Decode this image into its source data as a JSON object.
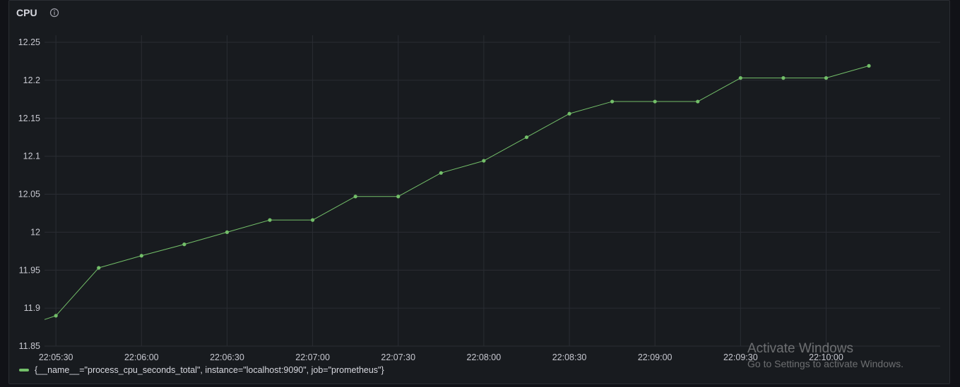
{
  "panel": {
    "title": "CPU",
    "info_icon": "info-circle-icon"
  },
  "colors": {
    "background": "#111217",
    "panel": "#181b1f",
    "series": "#73bf69",
    "grid": "#2a2d33"
  },
  "legend": {
    "label": "{__name__=\"process_cpu_seconds_total\", instance=\"localhost:9090\", job=\"prometheus\"}"
  },
  "watermark": {
    "title": "Activate Windows",
    "subtitle": "Go to Settings to activate Windows."
  },
  "chart_data": {
    "type": "line",
    "grid": true,
    "legend_position": "bottom-left",
    "ylim": [
      11.85,
      12.25
    ],
    "y_ticks": [
      "11.85",
      "11.9",
      "11.95",
      "12",
      "12.05",
      "12.1",
      "12.15",
      "12.2",
      "12.25"
    ],
    "x_ticks": [
      "22:05:30",
      "22:06:00",
      "22:06:30",
      "22:07:00",
      "22:07:30",
      "22:08:00",
      "22:08:30",
      "22:09:00",
      "22:09:30",
      "22:10:00"
    ],
    "xlim": [
      "22:05:26",
      "22:10:40"
    ],
    "series": [
      {
        "name": "{__name__=\"process_cpu_seconds_total\", instance=\"localhost:9090\", job=\"prometheus\"}",
        "x": [
          "22:05:26",
          "22:05:30",
          "22:05:45",
          "22:06:00",
          "22:06:15",
          "22:06:30",
          "22:06:45",
          "22:07:00",
          "22:07:15",
          "22:07:30",
          "22:07:45",
          "22:08:00",
          "22:08:15",
          "22:08:30",
          "22:08:45",
          "22:09:00",
          "22:09:15",
          "22:09:30",
          "22:09:45",
          "22:10:00",
          "22:10:15"
        ],
        "values": [
          11.885,
          11.89,
          11.953,
          11.969,
          11.984,
          12.0,
          12.016,
          12.016,
          12.047,
          12.047,
          12.078,
          12.094,
          12.125,
          12.156,
          12.172,
          12.172,
          12.172,
          12.203,
          12.203,
          12.203,
          12.219
        ],
        "markers": [
          false,
          true,
          true,
          true,
          true,
          true,
          true,
          true,
          true,
          true,
          true,
          true,
          true,
          true,
          true,
          true,
          true,
          true,
          true,
          true,
          true
        ]
      }
    ]
  }
}
